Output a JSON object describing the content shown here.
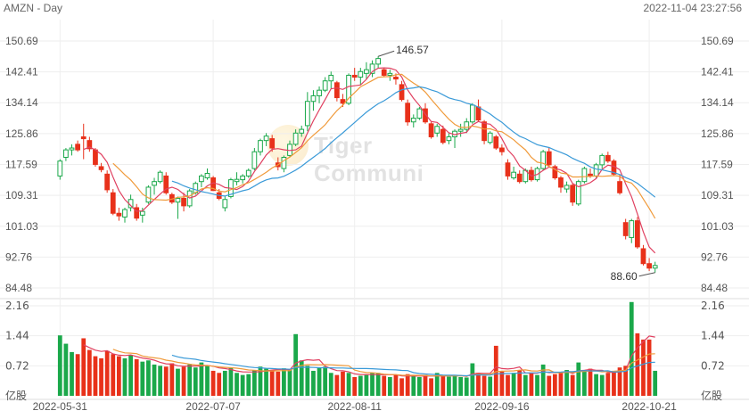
{
  "header": {
    "title": "AMZN - Day",
    "timestamp": "2022-11-04 23:27:56"
  },
  "watermark": {
    "text": "Tiger Communi",
    "logo": "tiger-logo"
  },
  "colors": {
    "up": "#1aa84a",
    "down": "#e8311a",
    "ma5": "#e04060",
    "ma10": "#f09a3a",
    "ma20": "#3a9ad8",
    "vol_ma1": "#e04060",
    "vol_ma2": "#f09a3a",
    "vol_ma3": "#3a9ad8",
    "grid": "#eeeeee",
    "axis_text": "#555555"
  },
  "chart_data": [
    {
      "type": "candlestick",
      "title": "AMZN - Day",
      "ylim": [
        84.48,
        150.69
      ],
      "yticks": [
        "150.69",
        "142.41",
        "134.14",
        "125.86",
        "117.59",
        "109.31",
        "101.03",
        "92.76",
        "84.48"
      ],
      "xticks": [
        "2022-05-31",
        "2022-07-07",
        "2022-08-11",
        "2022-09-16",
        "2022-10-21"
      ],
      "annotations": [
        {
          "label": "146.57",
          "value": 146.57,
          "date": "2022-08-16",
          "kind": "high"
        },
        {
          "label": "88.60",
          "value": 88.6,
          "date": "2022-11-04",
          "kind": "low"
        }
      ],
      "grid": true,
      "moving_averages": [
        "MA5",
        "MA10",
        "MA20"
      ],
      "candles": [
        [
          114.5,
          119.0,
          113.5,
          118.5
        ],
        [
          119.5,
          122.0,
          118.5,
          121.5
        ],
        [
          121.5,
          123.0,
          120.0,
          122.0
        ],
        [
          123.0,
          124.0,
          121.0,
          121.5
        ],
        [
          125.0,
          128.5,
          119.0,
          124.5
        ],
        [
          124.0,
          125.0,
          121.0,
          121.8
        ],
        [
          121.5,
          122.0,
          117.0,
          117.6
        ],
        [
          117.0,
          118.0,
          115.5,
          116.2
        ],
        [
          115.0,
          116.0,
          110.0,
          110.8
        ],
        [
          110.0,
          111.0,
          104.0,
          104.5
        ],
        [
          104.5,
          106.0,
          102.5,
          103.8
        ],
        [
          103.5,
          106.0,
          102.0,
          105.5
        ],
        [
          106.0,
          109.5,
          105.0,
          108.2
        ],
        [
          106.0,
          107.0,
          102.5,
          103.2
        ],
        [
          104.0,
          106.0,
          102.0,
          105.0
        ],
        [
          107.5,
          112.0,
          107.0,
          111.5
        ],
        [
          112.0,
          114.0,
          109.5,
          113.0
        ],
        [
          113.0,
          116.0,
          112.5,
          115.5
        ],
        [
          114.5,
          115.5,
          109.5,
          110.0
        ],
        [
          109.5,
          110.0,
          107.0,
          107.5
        ],
        [
          107.5,
          109.0,
          103.0,
          108.5
        ],
        [
          108.5,
          110.0,
          105.0,
          106.5
        ],
        [
          106.5,
          111.0,
          106.0,
          110.5
        ],
        [
          110.0,
          113.0,
          109.5,
          112.5
        ],
        [
          113.0,
          115.0,
          111.5,
          114.5
        ],
        [
          114.0,
          116.5,
          113.5,
          115.2
        ],
        [
          114.0,
          114.5,
          110.5,
          110.6
        ],
        [
          110.0,
          111.0,
          108.0,
          108.5
        ],
        [
          106.0,
          109.0,
          105.0,
          108.2
        ],
        [
          109.0,
          114.0,
          108.5,
          113.5
        ],
        [
          113.0,
          115.5,
          112.0,
          113.6
        ],
        [
          113.5,
          115.0,
          112.5,
          114.5
        ],
        [
          114.5,
          116.5,
          114.0,
          116.0
        ],
        [
          116.5,
          122.0,
          116.0,
          121.0
        ],
        [
          121.0,
          124.5,
          120.0,
          124.0
        ],
        [
          124.0,
          126.0,
          122.5,
          125.2
        ],
        [
          124.5,
          125.5,
          121.0,
          122.0
        ],
        [
          118.0,
          119.5,
          116.0,
          117.0
        ],
        [
          116.5,
          120.0,
          115.5,
          119.5
        ],
        [
          120.0,
          124.0,
          119.5,
          123.0
        ],
        [
          123.0,
          127.0,
          122.5,
          126.0
        ],
        [
          126.0,
          128.0,
          125.0,
          127.0
        ],
        [
          128.0,
          137.0,
          126.5,
          134.5
        ],
        [
          134.5,
          137.5,
          132.0,
          136.0
        ],
        [
          136.0,
          138.5,
          134.0,
          137.5
        ],
        [
          137.5,
          141.0,
          137.0,
          140.0
        ],
        [
          140.0,
          142.5,
          138.0,
          141.5
        ],
        [
          139.5,
          140.0,
          134.5,
          135.5
        ],
        [
          135.0,
          136.5,
          133.0,
          134.0
        ],
        [
          134.0,
          142.0,
          133.5,
          141.5
        ],
        [
          141.5,
          143.5,
          140.0,
          141.0
        ],
        [
          141.0,
          143.5,
          139.0,
          142.5
        ],
        [
          142.0,
          145.0,
          140.5,
          143.0
        ],
        [
          142.0,
          145.5,
          141.0,
          144.5
        ],
        [
          144.5,
          146.6,
          143.5,
          146.0
        ],
        [
          143.0,
          143.5,
          141.0,
          141.5
        ],
        [
          141.5,
          143.0,
          140.0,
          142.0
        ],
        [
          141.0,
          142.0,
          139.0,
          140.5
        ],
        [
          139.0,
          140.0,
          134.5,
          135.0
        ],
        [
          134.0,
          135.0,
          128.0,
          129.0
        ],
        [
          129.0,
          131.0,
          127.5,
          130.0
        ],
        [
          130.0,
          133.0,
          129.5,
          132.5
        ],
        [
          132.5,
          134.0,
          128.5,
          129.0
        ],
        [
          128.5,
          129.0,
          124.5,
          125.0
        ],
        [
          126.0,
          128.5,
          125.0,
          127.8
        ],
        [
          127.0,
          128.0,
          123.0,
          123.5
        ],
        [
          124.0,
          126.0,
          123.0,
          125.0
        ],
        [
          125.0,
          127.0,
          122.0,
          126.5
        ],
        [
          126.5,
          128.5,
          125.0,
          127.0
        ],
        [
          127.0,
          130.0,
          126.0,
          129.0
        ],
        [
          129.0,
          134.0,
          128.5,
          133.5
        ],
        [
          133.0,
          135.0,
          129.0,
          129.5
        ],
        [
          129.0,
          129.5,
          123.0,
          124.0
        ],
        [
          123.5,
          126.5,
          123.0,
          126.0
        ],
        [
          125.0,
          125.5,
          121.5,
          122.0
        ],
        [
          122.0,
          123.0,
          120.0,
          121.0
        ],
        [
          118.0,
          119.0,
          113.5,
          114.5
        ],
        [
          114.0,
          117.0,
          113.5,
          115.5
        ],
        [
          115.0,
          116.0,
          112.5,
          113.0
        ],
        [
          113.0,
          116.5,
          112.5,
          116.0
        ],
        [
          116.0,
          117.0,
          113.0,
          113.5
        ],
        [
          113.5,
          117.0,
          113.0,
          116.5
        ],
        [
          116.5,
          121.5,
          116.0,
          121.0
        ],
        [
          121.0,
          122.0,
          117.0,
          117.5
        ],
        [
          117.0,
          117.5,
          113.5,
          114.0
        ],
        [
          114.0,
          114.5,
          110.0,
          111.5
        ],
        [
          111.0,
          113.0,
          110.0,
          112.0
        ],
        [
          112.0,
          112.5,
          106.5,
          107.5
        ],
        [
          107.0,
          113.5,
          106.5,
          113.0
        ],
        [
          113.0,
          117.0,
          112.5,
          116.5
        ],
        [
          115.0,
          116.5,
          114.0,
          114.5
        ],
        [
          114.5,
          118.0,
          114.0,
          117.5
        ],
        [
          117.5,
          120.5,
          116.5,
          120.0
        ],
        [
          120.0,
          121.0,
          118.0,
          118.5
        ],
        [
          118.5,
          119.0,
          114.5,
          115.0
        ],
        [
          113.0,
          115.0,
          109.5,
          110.0
        ],
        [
          102.0,
          103.0,
          97.5,
          98.5
        ],
        [
          98.0,
          103.0,
          96.5,
          102.5
        ],
        [
          102.5,
          103.5,
          95.0,
          95.5
        ],
        [
          95.0,
          96.0,
          90.5,
          91.0
        ],
        [
          91.0,
          92.5,
          89.0,
          89.8
        ],
        [
          89.8,
          91.5,
          88.6,
          90.5
        ]
      ],
      "candle_dates": {
        "0": "2022-05-31",
        "26": "2022-07-07",
        "50": "2022-08-11",
        "75": "2022-09-16",
        "100": "2022-10-21"
      }
    },
    {
      "type": "bar",
      "title": "Volume",
      "ylim": [
        0,
        2.16
      ],
      "yticks": [
        "2.16",
        "1.44",
        "0.72",
        "亿股"
      ],
      "unit": "亿股",
      "values": [
        1.45,
        1.25,
        1.05,
        1.0,
        1.38,
        1.1,
        0.95,
        0.9,
        1.08,
        1.0,
        0.95,
        0.9,
        0.98,
        0.88,
        0.82,
        0.85,
        0.75,
        0.72,
        0.7,
        0.78,
        0.65,
        0.7,
        0.75,
        0.68,
        0.8,
        0.72,
        0.6,
        0.55,
        0.6,
        0.68,
        0.55,
        0.5,
        0.52,
        0.62,
        0.7,
        0.65,
        0.6,
        0.58,
        0.66,
        0.62,
        1.48,
        0.85,
        0.72,
        0.6,
        0.68,
        0.7,
        0.55,
        0.5,
        0.58,
        0.55,
        0.45,
        0.48,
        0.5,
        0.55,
        0.55,
        0.48,
        0.45,
        0.5,
        0.42,
        0.52,
        0.48,
        0.45,
        0.5,
        0.42,
        0.55,
        0.48,
        0.46,
        0.5,
        0.45,
        0.44,
        0.78,
        0.55,
        0.48,
        0.46,
        1.2,
        0.58,
        0.5,
        0.55,
        0.62,
        0.5,
        0.55,
        0.5,
        0.75,
        0.48,
        0.52,
        0.55,
        0.62,
        0.5,
        0.8,
        0.6,
        0.65,
        0.52,
        0.5,
        0.55,
        0.6,
        0.68,
        0.72,
        2.25,
        1.5,
        1.35,
        1.35,
        0.6
      ],
      "moving_averages": [
        "MA5",
        "MA10",
        "MA20"
      ]
    }
  ]
}
